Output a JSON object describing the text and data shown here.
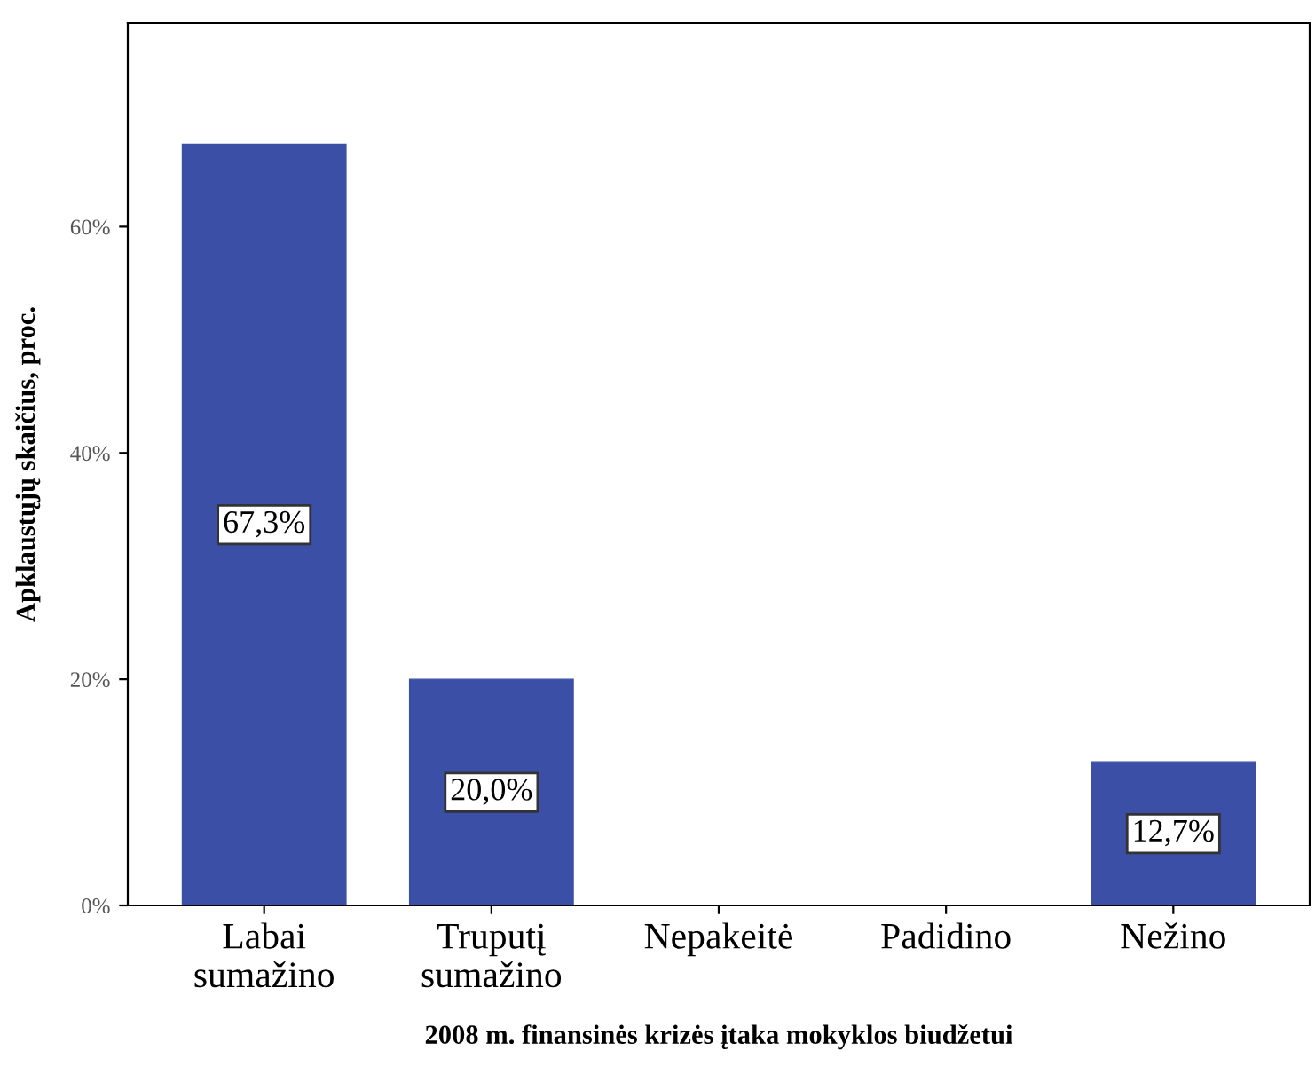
{
  "chart_data": {
    "type": "bar",
    "xlabel": "2008 m. finansinės krizės įtaka mokyklos biudžetui",
    "ylabel": "Apklaustųjų skaičius, proc.",
    "categories": [
      "Labai\nsumažino",
      "Truputį\nsumažino",
      "Nepakeitė",
      "Padidino",
      "Nežino"
    ],
    "values": [
      67.3,
      20.0,
      0,
      0,
      12.7
    ],
    "value_labels": [
      "67,3%",
      "20,0%",
      null,
      null,
      "12,7%"
    ],
    "color": "#3a4fa5",
    "ylim": [
      0,
      78
    ],
    "yticks": [
      {
        "value": 0,
        "label": "0%"
      },
      {
        "value": 20,
        "label": "20%"
      },
      {
        "value": 40,
        "label": "40%"
      },
      {
        "value": 60,
        "label": "60%"
      }
    ],
    "grid": false,
    "legend": false
  }
}
